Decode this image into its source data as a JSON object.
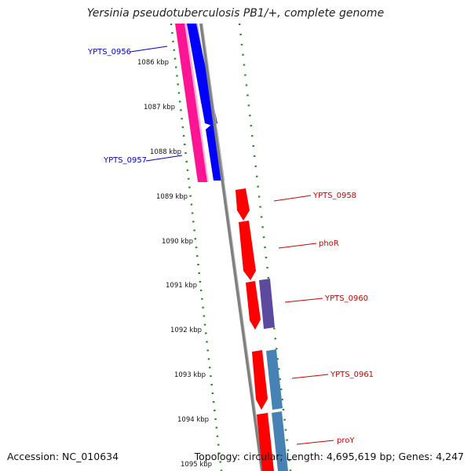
{
  "header": {
    "title": "Yersinia pseudotuberculosis PB1/+, complete genome"
  },
  "footer": {
    "accession": "Accession: NC_010634",
    "summary": "Topology: circular; Length: 4,695,619 bp; Genes: 4,247"
  },
  "ticks": [
    "1086 kbp",
    "1087 kbp",
    "1088 kbp",
    "1089 kbp",
    "1090 kbp",
    "1091 kbp",
    "1092 kbp",
    "1093 kbp",
    "1094 kbp",
    "1095 kbp"
  ],
  "genes": [
    {
      "label": "YPTS_0956",
      "strand": "reverse",
      "color": "#0000cc"
    },
    {
      "label": "YPTS_0957",
      "strand": "reverse",
      "color": "#0000cc"
    },
    {
      "label": "YPTS_0958",
      "strand": "forward",
      "color": "#cc0000"
    },
    {
      "label": "phoR",
      "strand": "forward",
      "color": "#cc0000"
    },
    {
      "label": "YPTS_0960",
      "strand": "forward",
      "color": "#cc0000"
    },
    {
      "label": "YPTS_0961",
      "strand": "forward",
      "color": "#cc0000"
    },
    {
      "label": "proY",
      "strand": "forward",
      "color": "#cc0000"
    }
  ],
  "colors": {
    "cds": "#ff0000",
    "gene_blue": "#0000ff",
    "rrna_pink": "#ff1493",
    "purple": "#5b4a9e",
    "steel_blue": "#4682b4",
    "backbone": "#808080",
    "gc_dots": "#228b22"
  }
}
